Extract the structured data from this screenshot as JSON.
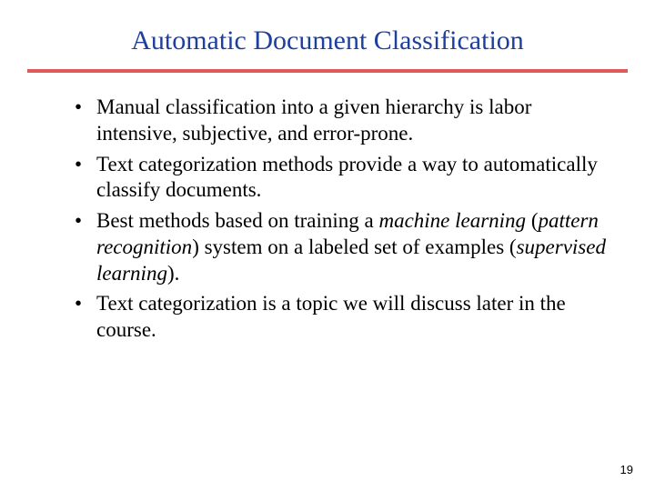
{
  "title": "Automatic Document Classification",
  "title_color": "#1f3f9c",
  "title_fontsize": 30,
  "divider_color": "#e05a5a",
  "divider_height": 4,
  "body_color": "#000000",
  "body_fontsize": 23,
  "background_color": "#ffffff",
  "page_number": "19",
  "bullets": [
    {
      "pre": "Manual classification into a given hierarchy is labor intensive, subjective, and error-prone."
    },
    {
      "pre": "Text categorization methods provide a way to automatically classify documents."
    },
    {
      "pre": "Best methods based on training a ",
      "i1": "machine learning",
      "mid1": " (",
      "i2": "pattern recognition",
      "mid2": ") system on a labeled set of examples (",
      "i3": "supervised learning",
      "post": ")."
    },
    {
      "pre": "Text categorization is a topic we will discuss later in the course."
    }
  ]
}
